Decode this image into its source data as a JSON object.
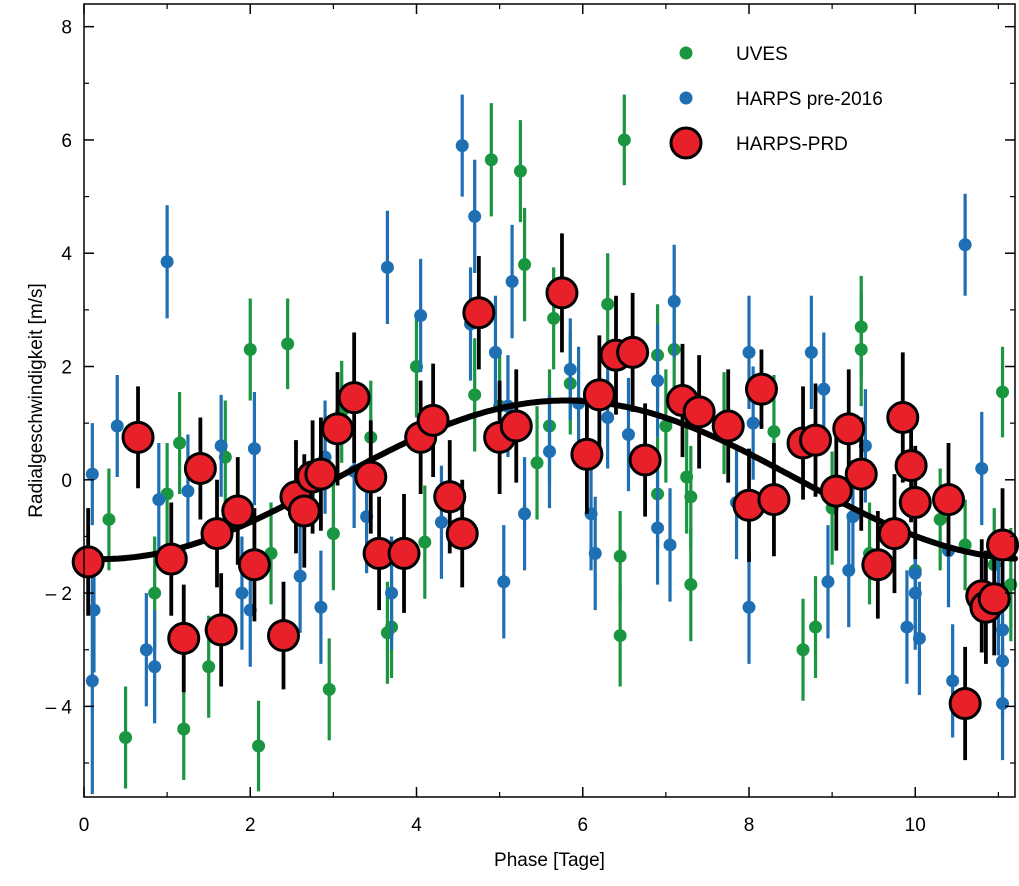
{
  "chart_data": {
    "type": "scatter",
    "xlabel": "Phase [Tage]",
    "ylabel": "Radialgeschwindigkeit [m/s]",
    "xlim": [
      0,
      11.2
    ],
    "ylim": [
      -5.6,
      8.4
    ],
    "x_ticks": [
      0,
      2,
      4,
      6,
      8,
      10
    ],
    "y_ticks": [
      -4,
      -2,
      0,
      2,
      4,
      6,
      8
    ],
    "x_tick_labels": [
      "0",
      "2",
      "4",
      "6",
      "8",
      "10"
    ],
    "y_tick_labels": [
      "– 4",
      "– 2",
      "0",
      "2",
      "4",
      "6",
      "8"
    ],
    "legend_position": "top-right",
    "colors": {
      "uves": "#1a9641",
      "harps_pre": "#1f6fb4",
      "harps_prd": "#e8202a",
      "model": "#000000"
    },
    "model_curve": {
      "type": "sine",
      "mean": 0.0,
      "amplitude": 1.4,
      "period": 11.19,
      "peak_phase": 5.8
    },
    "series": [
      {
        "name": "UVES",
        "points": [
          {
            "x": 0.3,
            "y": -0.7,
            "err": 0.9
          },
          {
            "x": 0.5,
            "y": -4.55,
            "err": 0.9
          },
          {
            "x": 0.85,
            "y": -2.0,
            "err": 1.0
          },
          {
            "x": 1.0,
            "y": -0.25,
            "err": 0.9
          },
          {
            "x": 1.2,
            "y": -4.4,
            "err": 0.9
          },
          {
            "x": 1.15,
            "y": 0.65,
            "err": 0.9
          },
          {
            "x": 1.5,
            "y": -3.3,
            "err": 0.9
          },
          {
            "x": 1.7,
            "y": 0.4,
            "err": 1.0
          },
          {
            "x": 2.0,
            "y": 2.3,
            "err": 0.9
          },
          {
            "x": 2.1,
            "y": -4.7,
            "err": 0.8
          },
          {
            "x": 2.25,
            "y": -1.3,
            "err": 0.9
          },
          {
            "x": 2.45,
            "y": 2.4,
            "err": 0.8
          },
          {
            "x": 2.95,
            "y": -3.7,
            "err": 0.9
          },
          {
            "x": 3.0,
            "y": -0.95,
            "err": 1.0
          },
          {
            "x": 3.1,
            "y": 1.2,
            "err": 0.9
          },
          {
            "x": 3.45,
            "y": 0.75,
            "err": 1.0
          },
          {
            "x": 3.65,
            "y": -2.7,
            "err": 0.9
          },
          {
            "x": 3.7,
            "y": -2.6,
            "err": 0.9
          },
          {
            "x": 4.0,
            "y": 2.0,
            "err": 0.9
          },
          {
            "x": 4.1,
            "y": -1.1,
            "err": 1.0
          },
          {
            "x": 4.7,
            "y": 1.5,
            "err": 1.0
          },
          {
            "x": 4.9,
            "y": 5.65,
            "err": 1.0
          },
          {
            "x": 5.0,
            "y": 1.3,
            "err": 0.9
          },
          {
            "x": 5.25,
            "y": 5.45,
            "err": 0.9
          },
          {
            "x": 5.3,
            "y": 3.8,
            "err": 1.0
          },
          {
            "x": 5.45,
            "y": 0.3,
            "err": 1.0
          },
          {
            "x": 5.6,
            "y": 0.95,
            "err": 1.0
          },
          {
            "x": 5.65,
            "y": 2.85,
            "err": 0.9
          },
          {
            "x": 5.85,
            "y": 1.7,
            "err": 0.9
          },
          {
            "x": 6.3,
            "y": 3.1,
            "err": 0.9
          },
          {
            "x": 6.45,
            "y": -1.35,
            "err": 0.8
          },
          {
            "x": 6.5,
            "y": 6.0,
            "err": 0.8
          },
          {
            "x": 6.45,
            "y": -2.75,
            "err": 0.9
          },
          {
            "x": 6.9,
            "y": 2.2,
            "err": 0.9
          },
          {
            "x": 6.9,
            "y": -0.25,
            "err": 1.0
          },
          {
            "x": 7.0,
            "y": 0.95,
            "err": 1.0
          },
          {
            "x": 7.1,
            "y": 2.3,
            "err": 0.9
          },
          {
            "x": 7.25,
            "y": 0.05,
            "err": 1.0
          },
          {
            "x": 7.3,
            "y": -1.85,
            "err": 1.0
          },
          {
            "x": 7.3,
            "y": -0.3,
            "err": 0.9
          },
          {
            "x": 7.7,
            "y": 1.0,
            "err": 0.9
          },
          {
            "x": 8.3,
            "y": 0.85,
            "err": 1.0
          },
          {
            "x": 8.65,
            "y": -3.0,
            "err": 0.9
          },
          {
            "x": 8.8,
            "y": -2.6,
            "err": 0.9
          },
          {
            "x": 9.0,
            "y": -0.5,
            "err": 1.0
          },
          {
            "x": 9.35,
            "y": 2.7,
            "err": 0.9
          },
          {
            "x": 9.35,
            "y": 2.3,
            "err": 1.0
          },
          {
            "x": 9.45,
            "y": -1.3,
            "err": 0.9
          },
          {
            "x": 9.85,
            "y": 1.0,
            "err": 0.9
          },
          {
            "x": 10.0,
            "y": -1.6,
            "err": 0.9
          },
          {
            "x": 10.3,
            "y": -0.7,
            "err": 0.9
          },
          {
            "x": 10.6,
            "y": -1.15,
            "err": 0.8
          },
          {
            "x": 10.95,
            "y": -1.5,
            "err": 1.0
          },
          {
            "x": 11.05,
            "y": 1.55,
            "err": 0.8
          },
          {
            "x": 11.15,
            "y": -1.85,
            "err": 1.0
          }
        ]
      },
      {
        "name": "HARPS pre-2016",
        "points": [
          {
            "x": 0.1,
            "y": 0.1,
            "err": 0.9
          },
          {
            "x": 0.12,
            "y": -2.3,
            "err": 1.1
          },
          {
            "x": 0.1,
            "y": -3.55,
            "err": 2.0
          },
          {
            "x": 0.4,
            "y": 0.95,
            "err": 0.9
          },
          {
            "x": 0.75,
            "y": -3.0,
            "err": 1.0
          },
          {
            "x": 0.85,
            "y": -3.3,
            "err": 1.0
          },
          {
            "x": 0.9,
            "y": -0.35,
            "err": 1.0
          },
          {
            "x": 1.0,
            "y": 3.85,
            "err": 1.0
          },
          {
            "x": 1.25,
            "y": -0.2,
            "err": 1.0
          },
          {
            "x": 1.65,
            "y": 0.6,
            "err": 0.9
          },
          {
            "x": 1.9,
            "y": -2.0,
            "err": 1.0
          },
          {
            "x": 2.0,
            "y": -2.3,
            "err": 1.0
          },
          {
            "x": 2.05,
            "y": 0.55,
            "err": 1.0
          },
          {
            "x": 2.6,
            "y": -1.7,
            "err": 1.0
          },
          {
            "x": 2.85,
            "y": -2.25,
            "err": 1.0
          },
          {
            "x": 2.9,
            "y": 0.4,
            "err": 1.0
          },
          {
            "x": 3.25,
            "y": 0.15,
            "err": 1.0
          },
          {
            "x": 3.4,
            "y": -0.65,
            "err": 1.0
          },
          {
            "x": 3.65,
            "y": 3.75,
            "err": 1.0
          },
          {
            "x": 3.7,
            "y": -2.0,
            "err": 1.0
          },
          {
            "x": 4.05,
            "y": 2.9,
            "err": 1.0
          },
          {
            "x": 4.3,
            "y": -0.75,
            "err": 1.0
          },
          {
            "x": 4.55,
            "y": 5.9,
            "err": 0.9
          },
          {
            "x": 4.65,
            "y": 2.75,
            "err": 1.0
          },
          {
            "x": 4.7,
            "y": 4.65,
            "err": 1.0
          },
          {
            "x": 4.95,
            "y": 2.25,
            "err": 1.0
          },
          {
            "x": 5.05,
            "y": -1.8,
            "err": 1.0
          },
          {
            "x": 5.1,
            "y": 1.3,
            "err": 0.9
          },
          {
            "x": 5.15,
            "y": 3.5,
            "err": 1.0
          },
          {
            "x": 5.3,
            "y": -0.6,
            "err": 1.0
          },
          {
            "x": 5.6,
            "y": 0.5,
            "err": 1.0
          },
          {
            "x": 5.85,
            "y": 1.95,
            "err": 0.9
          },
          {
            "x": 5.95,
            "y": 1.35,
            "err": 1.0
          },
          {
            "x": 6.1,
            "y": -0.6,
            "err": 1.0
          },
          {
            "x": 6.15,
            "y": -1.3,
            "err": 1.0
          },
          {
            "x": 6.3,
            "y": 1.1,
            "err": 0.9
          },
          {
            "x": 6.55,
            "y": 0.8,
            "err": 1.0
          },
          {
            "x": 6.9,
            "y": 1.75,
            "err": 1.0
          },
          {
            "x": 6.9,
            "y": -0.85,
            "err": 1.0
          },
          {
            "x": 7.05,
            "y": -1.15,
            "err": 1.0
          },
          {
            "x": 7.1,
            "y": 3.15,
            "err": 1.0
          },
          {
            "x": 7.85,
            "y": -0.4,
            "err": 1.0
          },
          {
            "x": 8.0,
            "y": 2.25,
            "err": 1.0
          },
          {
            "x": 8.0,
            "y": -2.25,
            "err": 1.0
          },
          {
            "x": 8.05,
            "y": 1.0,
            "err": 1.0
          },
          {
            "x": 8.75,
            "y": 2.25,
            "err": 1.0
          },
          {
            "x": 8.9,
            "y": 1.6,
            "err": 1.0
          },
          {
            "x": 8.95,
            "y": -1.8,
            "err": 1.0
          },
          {
            "x": 9.2,
            "y": -1.6,
            "err": 1.0
          },
          {
            "x": 9.25,
            "y": -0.65,
            "err": 1.0
          },
          {
            "x": 9.4,
            "y": 0.6,
            "err": 1.0
          },
          {
            "x": 9.9,
            "y": -2.6,
            "err": 1.0
          },
          {
            "x": 10.0,
            "y": -1.65,
            "err": 1.0
          },
          {
            "x": 10.0,
            "y": -2.0,
            "err": 1.0
          },
          {
            "x": 10.05,
            "y": -2.8,
            "err": 1.0
          },
          {
            "x": 10.4,
            "y": -1.25,
            "err": 1.0
          },
          {
            "x": 10.45,
            "y": -3.55,
            "err": 1.0
          },
          {
            "x": 10.6,
            "y": 4.15,
            "err": 0.9
          },
          {
            "x": 10.8,
            "y": 0.2,
            "err": 1.0
          },
          {
            "x": 11.05,
            "y": -2.65,
            "err": 1.0
          },
          {
            "x": 11.05,
            "y": -3.2,
            "err": 1.0
          },
          {
            "x": 11.05,
            "y": -3.95,
            "err": 1.0
          },
          {
            "x": 11.0,
            "y": -2.1,
            "err": 1.0
          }
        ]
      },
      {
        "name": "HARPS-PRD",
        "points": [
          {
            "x": 0.05,
            "y": -1.45,
            "err": 0.95
          },
          {
            "x": 0.65,
            "y": 0.75,
            "err": 0.9
          },
          {
            "x": 1.05,
            "y": -1.4,
            "err": 1.0
          },
          {
            "x": 1.2,
            "y": -2.8,
            "err": 0.95
          },
          {
            "x": 1.4,
            "y": 0.2,
            "err": 0.9
          },
          {
            "x": 1.6,
            "y": -0.95,
            "err": 0.95
          },
          {
            "x": 1.65,
            "y": -2.65,
            "err": 1.0
          },
          {
            "x": 1.85,
            "y": -0.55,
            "err": 0.95
          },
          {
            "x": 2.05,
            "y": -1.5,
            "err": 1.0
          },
          {
            "x": 2.4,
            "y": -2.75,
            "err": 0.95
          },
          {
            "x": 2.55,
            "y": -0.3,
            "err": 1.0
          },
          {
            "x": 2.65,
            "y": -0.55,
            "err": 1.0
          },
          {
            "x": 2.75,
            "y": 0.05,
            "err": 1.0
          },
          {
            "x": 2.85,
            "y": 0.1,
            "err": 1.0
          },
          {
            "x": 3.05,
            "y": 0.9,
            "err": 1.0
          },
          {
            "x": 3.25,
            "y": 1.45,
            "err": 1.15
          },
          {
            "x": 3.45,
            "y": 0.05,
            "err": 1.0
          },
          {
            "x": 3.55,
            "y": -1.3,
            "err": 1.0
          },
          {
            "x": 3.85,
            "y": -1.3,
            "err": 1.05
          },
          {
            "x": 4.05,
            "y": 0.75,
            "err": 1.0
          },
          {
            "x": 4.2,
            "y": 1.05,
            "err": 1.0
          },
          {
            "x": 4.4,
            "y": -0.3,
            "err": 1.0
          },
          {
            "x": 4.55,
            "y": -0.95,
            "err": 0.95
          },
          {
            "x": 4.75,
            "y": 2.95,
            "err": 1.0
          },
          {
            "x": 5.0,
            "y": 0.75,
            "err": 1.0
          },
          {
            "x": 5.2,
            "y": 0.95,
            "err": 1.0
          },
          {
            "x": 5.75,
            "y": 3.3,
            "err": 1.05
          },
          {
            "x": 6.05,
            "y": 0.45,
            "err": 1.05
          },
          {
            "x": 6.2,
            "y": 1.5,
            "err": 1.05
          },
          {
            "x": 6.4,
            "y": 2.2,
            "err": 1.05
          },
          {
            "x": 6.6,
            "y": 2.25,
            "err": 1.05
          },
          {
            "x": 6.75,
            "y": 0.35,
            "err": 1.0
          },
          {
            "x": 7.2,
            "y": 1.4,
            "err": 1.0
          },
          {
            "x": 7.4,
            "y": 1.2,
            "err": 1.0
          },
          {
            "x": 7.75,
            "y": 0.95,
            "err": 1.0
          },
          {
            "x": 8.0,
            "y": -0.45,
            "err": 1.0
          },
          {
            "x": 8.15,
            "y": 1.6,
            "err": 0.7
          },
          {
            "x": 8.3,
            "y": -0.35,
            "err": 1.0
          },
          {
            "x": 8.65,
            "y": 0.65,
            "err": 1.0
          },
          {
            "x": 8.8,
            "y": 0.7,
            "err": 1.0
          },
          {
            "x": 9.05,
            "y": -0.2,
            "err": 1.05
          },
          {
            "x": 9.2,
            "y": 0.9,
            "err": 1.05
          },
          {
            "x": 9.35,
            "y": 0.1,
            "err": 1.0
          },
          {
            "x": 9.55,
            "y": -1.5,
            "err": 0.95
          },
          {
            "x": 9.75,
            "y": -0.95,
            "err": 1.05
          },
          {
            "x": 9.85,
            "y": 1.1,
            "err": 1.15
          },
          {
            "x": 9.95,
            "y": 0.25,
            "err": 1.0
          },
          {
            "x": 10.0,
            "y": -0.4,
            "err": 1.0
          },
          {
            "x": 10.4,
            "y": -0.35,
            "err": 1.0
          },
          {
            "x": 10.6,
            "y": -3.95,
            "err": 1.0
          },
          {
            "x": 10.8,
            "y": -2.05,
            "err": 1.0
          },
          {
            "x": 10.85,
            "y": -2.25,
            "err": 1.0
          },
          {
            "x": 10.95,
            "y": -2.1,
            "err": 1.0
          },
          {
            "x": 11.05,
            "y": -1.15,
            "err": 1.0
          }
        ]
      }
    ]
  }
}
